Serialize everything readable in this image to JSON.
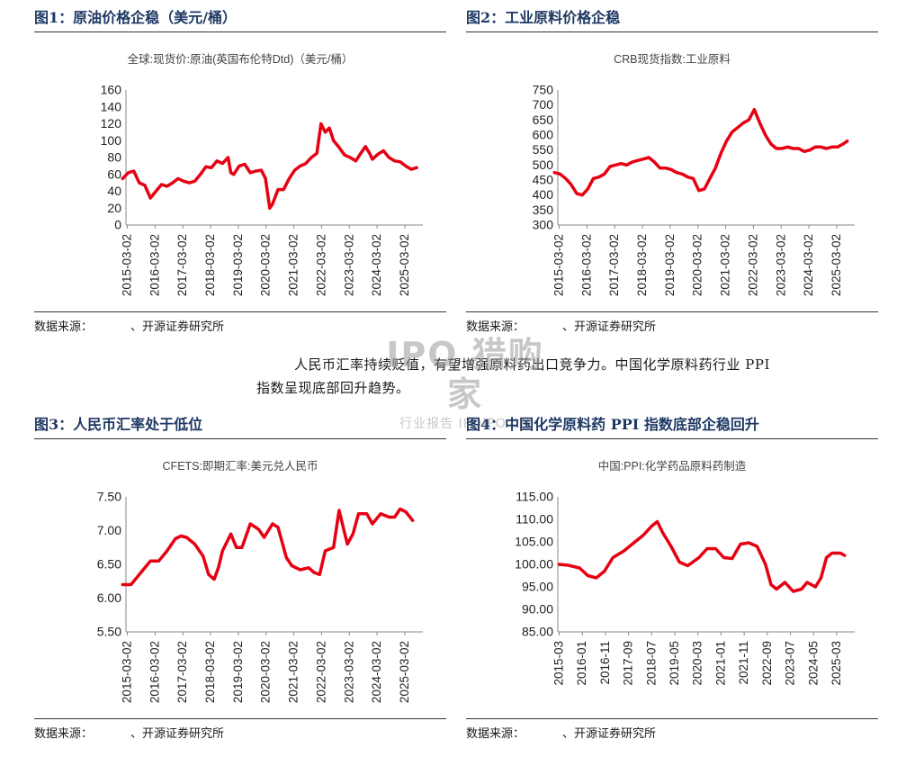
{
  "panels": [
    {
      "fig_title": "图1：原油价格企稳（美元/桶）",
      "source_label": "数据来源：",
      "source_text": "、开源证券研究所",
      "chart_data": {
        "type": "line",
        "title": "全球:现货价:原油(英国布伦特Dtd)（美元/桶）",
        "color": "#e60012",
        "yticks": [
          "0",
          "20",
          "40",
          "60",
          "80",
          "100",
          "120",
          "140",
          "160"
        ],
        "ylim": [
          0,
          160
        ],
        "xticks": [
          "2015-03-02",
          "2016-03-02",
          "2017-03-02",
          "2018-03-02",
          "2019-03-02",
          "2020-03-02",
          "2021-03-02",
          "2022-03-02",
          "2023-03-02",
          "2024-03-02",
          "2025-03-02"
        ],
        "x": [
          2015.0,
          2015.2,
          2015.4,
          2015.6,
          2015.8,
          2016.0,
          2016.2,
          2016.4,
          2016.6,
          2016.8,
          2017.0,
          2017.2,
          2017.4,
          2017.6,
          2017.8,
          2018.0,
          2018.2,
          2018.4,
          2018.6,
          2018.8,
          2018.9,
          2019.0,
          2019.2,
          2019.4,
          2019.6,
          2019.8,
          2020.0,
          2020.15,
          2020.3,
          2020.4,
          2020.6,
          2020.8,
          2021.0,
          2021.2,
          2021.4,
          2021.6,
          2021.8,
          2022.0,
          2022.15,
          2022.3,
          2022.45,
          2022.6,
          2022.8,
          2023.0,
          2023.2,
          2023.4,
          2023.6,
          2023.75,
          2023.9,
          2024.0,
          2024.2,
          2024.4,
          2024.6,
          2024.8,
          2025.0,
          2025.2,
          2025.4,
          2025.6
        ],
        "y": [
          55,
          62,
          64,
          50,
          47,
          32,
          40,
          48,
          46,
          50,
          55,
          52,
          50,
          52,
          60,
          69,
          68,
          76,
          73,
          80,
          62,
          60,
          70,
          72,
          62,
          64,
          65,
          55,
          20,
          25,
          42,
          42,
          55,
          65,
          70,
          73,
          80,
          85,
          120,
          110,
          115,
          100,
          92,
          83,
          80,
          76,
          86,
          93,
          85,
          78,
          84,
          88,
          80,
          76,
          75,
          70,
          66,
          68
        ]
      }
    },
    {
      "fig_title": "图2：工业原料价格企稳",
      "source_label": "数据来源：",
      "source_text": "、开源证券研究所",
      "chart_data": {
        "type": "line",
        "title": "CRB现货指数:工业原料",
        "color": "#e60012",
        "yticks": [
          "300",
          "350",
          "400",
          "450",
          "500",
          "550",
          "600",
          "650",
          "700",
          "750"
        ],
        "ylim": [
          300,
          750
        ],
        "xticks": [
          "2015-03-02",
          "2016-03-02",
          "2017-03-02",
          "2018-03-02",
          "2019-03-02",
          "2020-03-02",
          "2021-03-02",
          "2022-03-02",
          "2023-03-02",
          "2024-03-02",
          "2025-03-02"
        ],
        "x": [
          2015.0,
          2015.2,
          2015.4,
          2015.6,
          2015.8,
          2016.0,
          2016.2,
          2016.4,
          2016.6,
          2016.8,
          2017.0,
          2017.2,
          2017.4,
          2017.6,
          2017.8,
          2018.0,
          2018.2,
          2018.4,
          2018.6,
          2018.8,
          2019.0,
          2019.2,
          2019.4,
          2019.6,
          2019.8,
          2020.0,
          2020.2,
          2020.4,
          2020.6,
          2020.8,
          2021.0,
          2021.2,
          2021.4,
          2021.6,
          2021.8,
          2022.0,
          2022.2,
          2022.4,
          2022.6,
          2022.8,
          2023.0,
          2023.2,
          2023.4,
          2023.6,
          2023.8,
          2024.0,
          2024.2,
          2024.4,
          2024.6,
          2024.8,
          2025.0,
          2025.2,
          2025.4,
          2025.55
        ],
        "y": [
          475,
          470,
          455,
          435,
          405,
          400,
          420,
          455,
          460,
          470,
          495,
          500,
          505,
          500,
          510,
          515,
          520,
          525,
          510,
          490,
          490,
          485,
          475,
          470,
          460,
          455,
          415,
          420,
          455,
          490,
          540,
          580,
          610,
          625,
          640,
          650,
          685,
          640,
          600,
          570,
          555,
          555,
          560,
          555,
          555,
          545,
          550,
          560,
          560,
          555,
          560,
          560,
          570,
          580
        ]
      }
    },
    {
      "fig_title": "图3：人民币汇率处于低位",
      "source_label": "数据来源：",
      "source_text": "、开源证券研究所",
      "chart_data": {
        "type": "line",
        "title": "CFETS:即期汇率:美元兑人民币",
        "color": "#e60012",
        "yticks": [
          "5.50",
          "6.00",
          "6.50",
          "7.00",
          "7.50"
        ],
        "ylim": [
          5.5,
          7.5
        ],
        "xticks": [
          "2015-03-02",
          "2016-03-02",
          "2017-03-02",
          "2018-03-02",
          "2019-03-02",
          "2020-03-02",
          "2021-03-02",
          "2022-03-02",
          "2023-03-02",
          "2024-03-02",
          "2025-03-02"
        ],
        "x": [
          2015.0,
          2015.3,
          2015.6,
          2015.8,
          2016.0,
          2016.3,
          2016.6,
          2016.9,
          2017.1,
          2017.3,
          2017.6,
          2017.9,
          2018.1,
          2018.3,
          2018.45,
          2018.6,
          2018.9,
          2019.1,
          2019.3,
          2019.6,
          2019.9,
          2020.1,
          2020.4,
          2020.6,
          2020.9,
          2021.1,
          2021.4,
          2021.7,
          2021.9,
          2022.1,
          2022.3,
          2022.6,
          2022.8,
          2022.95,
          2023.1,
          2023.3,
          2023.5,
          2023.8,
          2024.0,
          2024.3,
          2024.6,
          2024.8,
          2025.0,
          2025.2,
          2025.45
        ],
        "y": [
          6.2,
          6.2,
          6.35,
          6.45,
          6.55,
          6.55,
          6.7,
          6.88,
          6.92,
          6.9,
          6.8,
          6.62,
          6.35,
          6.28,
          6.45,
          6.7,
          6.95,
          6.75,
          6.75,
          7.1,
          7.02,
          6.9,
          7.1,
          7.05,
          6.6,
          6.48,
          6.42,
          6.45,
          6.38,
          6.35,
          6.7,
          6.75,
          7.3,
          7.05,
          6.8,
          6.95,
          7.25,
          7.25,
          7.1,
          7.25,
          7.2,
          7.2,
          7.32,
          7.28,
          7.15
        ]
      }
    },
    {
      "fig_title": "图4：中国化学原料药 PPI 指数底部企稳回升",
      "source_label": "数据来源：",
      "source_text": "、开源证券研究所",
      "chart_data": {
        "type": "line",
        "title": "中国:PPI:化学药品原料药制造",
        "color": "#e60012",
        "yticks": [
          "85.00",
          "90.00",
          "95.00",
          "100.00",
          "105.00",
          "110.00",
          "115.00"
        ],
        "ylim": [
          85,
          115
        ],
        "xticks": [
          "2015-03",
          "2016-01",
          "2016-11",
          "2017-09",
          "2018-07",
          "2019-05",
          "2020-03",
          "2021-01",
          "2021-11",
          "2022-09",
          "2023-07",
          "2024-05",
          "2025-03"
        ],
        "x": [
          2015.17,
          2015.5,
          2015.9,
          2016.2,
          2016.5,
          2016.8,
          2017.1,
          2017.5,
          2017.9,
          2018.2,
          2018.5,
          2018.7,
          2018.9,
          2019.2,
          2019.5,
          2019.8,
          2020.2,
          2020.5,
          2020.8,
          2021.1,
          2021.4,
          2021.7,
          2022.0,
          2022.3,
          2022.6,
          2022.8,
          2023.0,
          2023.3,
          2023.6,
          2023.9,
          2024.1,
          2024.4,
          2024.6,
          2024.8,
          2025.0,
          2025.3,
          2025.45
        ],
        "y": [
          100,
          99.8,
          99.2,
          97.5,
          97,
          98.5,
          101.5,
          103,
          105,
          106.5,
          108.5,
          109.5,
          107,
          104,
          100.5,
          99.7,
          101.5,
          103.5,
          103.5,
          101.5,
          101.3,
          104.5,
          104.8,
          104,
          100,
          95.5,
          94.5,
          96,
          94,
          94.5,
          96,
          95,
          97,
          101.5,
          102.5,
          102.5,
          102
        ]
      }
    }
  ],
  "paragraph": {
    "line1": "人民币汇率持续贬值，有望增强原料药出口竞争力。中国化学原料药行业 PPI",
    "line2": "指数呈现底部回升趋势。"
  },
  "watermark": {
    "main": "IPO 猎购家",
    "sub": "行业报告 IPOIPO.CN"
  }
}
